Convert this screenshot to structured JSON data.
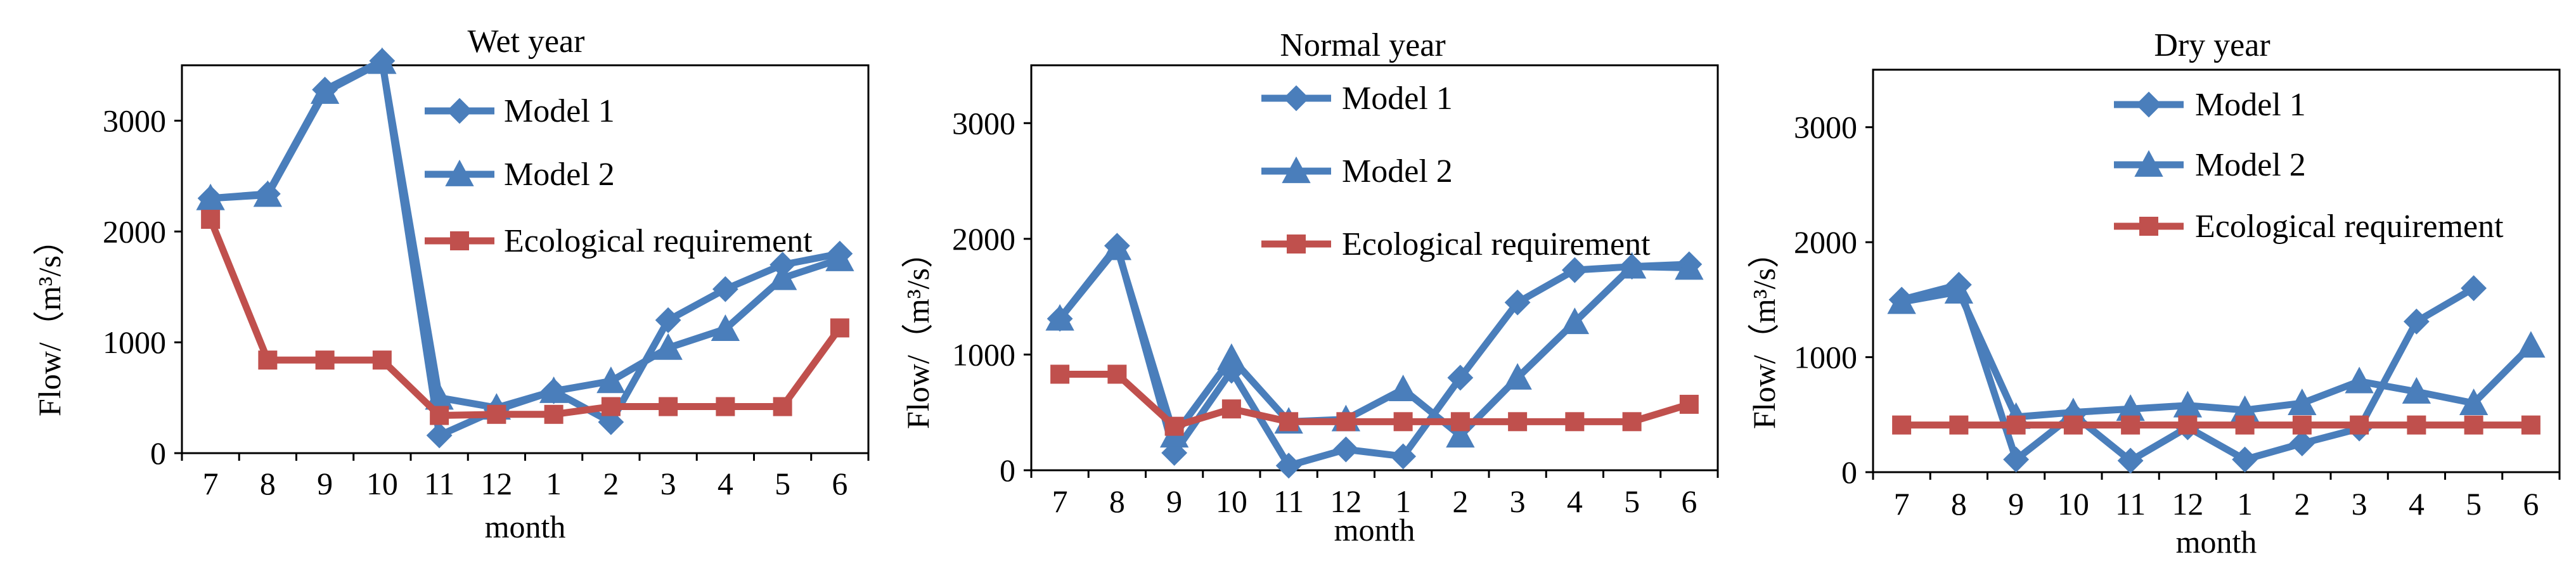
{
  "chart_data": [
    {
      "type": "line",
      "title": "Wet year",
      "xlabel": "month",
      "ylabel": "Flow/（m³/s）",
      "ylim": [
        0,
        3500
      ],
      "yticks": [
        "0",
        "1000",
        "2000",
        "3000"
      ],
      "categories": [
        "7",
        "8",
        "9",
        "10",
        "11",
        "12",
        "1",
        "2",
        "3",
        "4",
        "5",
        "6"
      ],
      "legend_position": "top-right",
      "series": [
        {
          "name": "Model 1",
          "marker": "diamond",
          "color": "#4a7ebb",
          "values": [
            2300,
            2340,
            3280,
            3540,
            160,
            390,
            560,
            280,
            1200,
            1480,
            1700,
            1800
          ]
        },
        {
          "name": "Model 2",
          "marker": "triangle",
          "color": "#4a7ebb",
          "values": [
            2300,
            2330,
            3260,
            3530,
            500,
            410,
            560,
            650,
            950,
            1120,
            1580,
            1750
          ]
        },
        {
          "name": "Ecological requirement",
          "marker": "square",
          "color": "#c0504d",
          "values": [
            2110,
            840,
            840,
            840,
            340,
            350,
            350,
            420,
            420,
            420,
            420,
            1130
          ]
        }
      ]
    },
    {
      "type": "line",
      "title": "Normal year",
      "xlabel": "month",
      "ylabel": "Flow/（m³/s）",
      "ylim": [
        0,
        3500
      ],
      "yticks": [
        "0",
        "1000",
        "2000",
        "3000"
      ],
      "categories": [
        "7",
        "8",
        "9",
        "10",
        "11",
        "12",
        "1",
        "2",
        "3",
        "4",
        "5",
        "6"
      ],
      "legend_position": "top-right",
      "series": [
        {
          "name": "Model 1",
          "marker": "diamond",
          "color": "#4a7ebb",
          "values": [
            1310,
            1940,
            150,
            860,
            40,
            180,
            120,
            800,
            1450,
            1730,
            1760,
            1780
          ]
        },
        {
          "name": "Model 2",
          "marker": "triangle",
          "color": "#4a7ebb",
          "values": [
            1310,
            1920,
            300,
            970,
            420,
            440,
            700,
            300,
            800,
            1280,
            1760,
            1750
          ]
        },
        {
          "name": "Ecological requirement",
          "marker": "square",
          "color": "#c0504d",
          "values": [
            830,
            830,
            380,
            530,
            420,
            420,
            420,
            420,
            420,
            420,
            420,
            570
          ]
        }
      ]
    },
    {
      "type": "line",
      "title": "Dry year",
      "xlabel": "month",
      "ylabel": "Flow/（m³/s）",
      "ylim": [
        0,
        3500
      ],
      "yticks": [
        "0",
        "1000",
        "2000",
        "3000"
      ],
      "categories": [
        "7",
        "8",
        "9",
        "10",
        "11",
        "12",
        "1",
        "2",
        "3",
        "4",
        "5",
        "6"
      ],
      "legend_position": "top-right",
      "series": [
        {
          "name": "Model 1",
          "marker": "diamond",
          "color": "#4a7ebb",
          "values": [
            1500,
            1630,
            110,
            500,
            100,
            390,
            110,
            250,
            380,
            1310,
            1600,
            null
          ]
        },
        {
          "name": "Model 2",
          "marker": "triangle",
          "color": "#4a7ebb",
          "values": [
            1480,
            1570,
            480,
            520,
            550,
            580,
            540,
            600,
            790,
            700,
            600,
            1100
          ]
        },
        {
          "name": "Ecological requirement",
          "marker": "square",
          "color": "#c0504d",
          "values": [
            410,
            410,
            410,
            410,
            410,
            410,
            410,
            410,
            410,
            410,
            410,
            410
          ]
        }
      ]
    }
  ]
}
